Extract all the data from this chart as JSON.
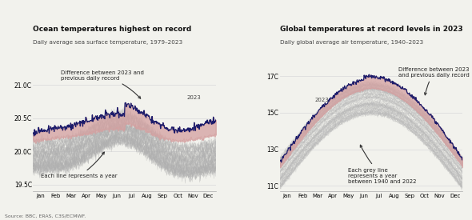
{
  "left_title": "Ocean temperatures highest on record",
  "left_subtitle": "Daily average sea surface temperature, 1979–2023",
  "right_title": "Global temperatures at record levels in 2023",
  "right_subtitle": "Daily global average air temperature, 1940–2023",
  "source": "Source: BBC, ERAS, C3S/ECMWF.",
  "left_ylim": [
    19.4,
    21.35
  ],
  "left_yticks": [
    19.5,
    20.0,
    20.5,
    21.0
  ],
  "left_ytick_labels": [
    "19.5C",
    "20.0C",
    "20.5C",
    "21.0C"
  ],
  "right_ylim": [
    10.7,
    17.8
  ],
  "right_yticks": [
    11,
    13,
    15,
    17
  ],
  "right_ytick_labels": [
    "11C",
    "13C",
    "15C",
    "17C"
  ],
  "months": [
    "Jan",
    "Feb",
    "Mar",
    "Apr",
    "May",
    "Jun",
    "Jul",
    "Aug",
    "Sep",
    "Oct",
    "Nov",
    "Dec"
  ],
  "left_2023_color": "#1c1c6b",
  "left_record_color": "#d4a0a0",
  "left_grey_color": "#b0b0b0",
  "right_2023_color": "#1c1c6b",
  "right_record_color": "#d4a0a0",
  "right_grey_color": "#b8b8b8",
  "background_color": "#f2f2ed"
}
